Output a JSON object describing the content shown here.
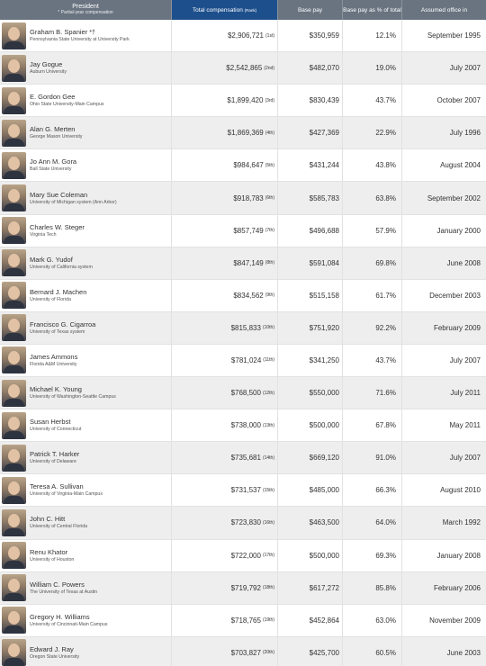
{
  "header": {
    "president": "President",
    "president_note": "* Partial-year compensation",
    "total": "Total compensation",
    "total_rank": "(Rank)",
    "base": "Base pay",
    "pct": "Base pay as % of total",
    "assumed": "Assumed office in"
  },
  "rows": [
    {
      "name": "Graham B. Spanier",
      "mark": "*†",
      "inst": "Pennsylvania State University at University Park",
      "total": "$2,906,721",
      "rank": "(1st)",
      "base": "$350,959",
      "pct": "12.1%",
      "date": "September 1995"
    },
    {
      "name": "Jay Gogue",
      "mark": "",
      "inst": "Auburn University",
      "total": "$2,542,865",
      "rank": "(2nd)",
      "base": "$482,070",
      "pct": "19.0%",
      "date": "July 2007"
    },
    {
      "name": "E. Gordon Gee",
      "mark": "",
      "inst": "Ohio State University-Main Campus",
      "total": "$1,899,420",
      "rank": "(3rd)",
      "base": "$830,439",
      "pct": "43.7%",
      "date": "October 2007"
    },
    {
      "name": "Alan G. Merten",
      "mark": "",
      "inst": "George Mason University",
      "total": "$1,869,369",
      "rank": "(4th)",
      "base": "$427,369",
      "pct": "22.9%",
      "date": "July 1996"
    },
    {
      "name": "Jo Ann M. Gora",
      "mark": "",
      "inst": "Ball State University",
      "total": "$984,647",
      "rank": "(5th)",
      "base": "$431,244",
      "pct": "43.8%",
      "date": "August 2004"
    },
    {
      "name": "Mary Sue Coleman",
      "mark": "",
      "inst": "University of Michigan system (Ann Arbor)",
      "total": "$918,783",
      "rank": "(6th)",
      "base": "$585,783",
      "pct": "63.8%",
      "date": "September 2002"
    },
    {
      "name": "Charles W. Steger",
      "mark": "",
      "inst": "Virginia Tech",
      "total": "$857,749",
      "rank": "(7th)",
      "base": "$496,688",
      "pct": "57.9%",
      "date": "January 2000"
    },
    {
      "name": "Mark G. Yudof",
      "mark": "",
      "inst": "University of California system",
      "total": "$847,149",
      "rank": "(8th)",
      "base": "$591,084",
      "pct": "69.8%",
      "date": "June 2008"
    },
    {
      "name": "Bernard J. Machen",
      "mark": "",
      "inst": "University of Florida",
      "total": "$834,562",
      "rank": "(9th)",
      "base": "$515,158",
      "pct": "61.7%",
      "date": "December 2003"
    },
    {
      "name": "Francisco G. Cigarroa",
      "mark": "",
      "inst": "University of Texas system",
      "total": "$815,833",
      "rank": "(10th)",
      "base": "$751,920",
      "pct": "92.2%",
      "date": "February 2009"
    },
    {
      "name": "James Ammons",
      "mark": "",
      "inst": "Florida A&M University",
      "total": "$781,024",
      "rank": "(11th)",
      "base": "$341,250",
      "pct": "43.7%",
      "date": "July 2007"
    },
    {
      "name": "Michael K. Young",
      "mark": "",
      "inst": "University of Washington-Seattle Campus",
      "total": "$768,500",
      "rank": "(12th)",
      "base": "$550,000",
      "pct": "71.6%",
      "date": "July 2011"
    },
    {
      "name": "Susan Herbst",
      "mark": "",
      "inst": "University of Connecticut",
      "total": "$738,000",
      "rank": "(13th)",
      "base": "$500,000",
      "pct": "67.8%",
      "date": "May 2011"
    },
    {
      "name": "Patrick T. Harker",
      "mark": "",
      "inst": "University of Delaware",
      "total": "$735,681",
      "rank": "(14th)",
      "base": "$669,120",
      "pct": "91.0%",
      "date": "July 2007"
    },
    {
      "name": "Teresa A. Sullivan",
      "mark": "",
      "inst": "University of Virginia-Main Campus",
      "total": "$731,537",
      "rank": "(15th)",
      "base": "$485,000",
      "pct": "66.3%",
      "date": "August 2010"
    },
    {
      "name": "John C. Hitt",
      "mark": "",
      "inst": "University of Central Florida",
      "total": "$723,830",
      "rank": "(16th)",
      "base": "$463,500",
      "pct": "64.0%",
      "date": "March 1992"
    },
    {
      "name": "Renu Khator",
      "mark": "",
      "inst": "University of Houston",
      "total": "$722,000",
      "rank": "(17th)",
      "base": "$500,000",
      "pct": "69.3%",
      "date": "January 2008"
    },
    {
      "name": "William C. Powers",
      "mark": "",
      "inst": "The University of Texas at Austin",
      "total": "$719,792",
      "rank": "(18th)",
      "base": "$617,272",
      "pct": "85.8%",
      "date": "February 2006"
    },
    {
      "name": "Gregory H. Williams",
      "mark": "",
      "inst": "University of Cincinnati-Main Campus",
      "total": "$718,765",
      "rank": "(19th)",
      "base": "$452,864",
      "pct": "63.0%",
      "date": "November 2009"
    },
    {
      "name": "Edward J. Ray",
      "mark": "",
      "inst": "Oregon State University",
      "total": "$703,827",
      "rank": "(20th)",
      "base": "$425,700",
      "pct": "60.5%",
      "date": "June 2003"
    }
  ]
}
